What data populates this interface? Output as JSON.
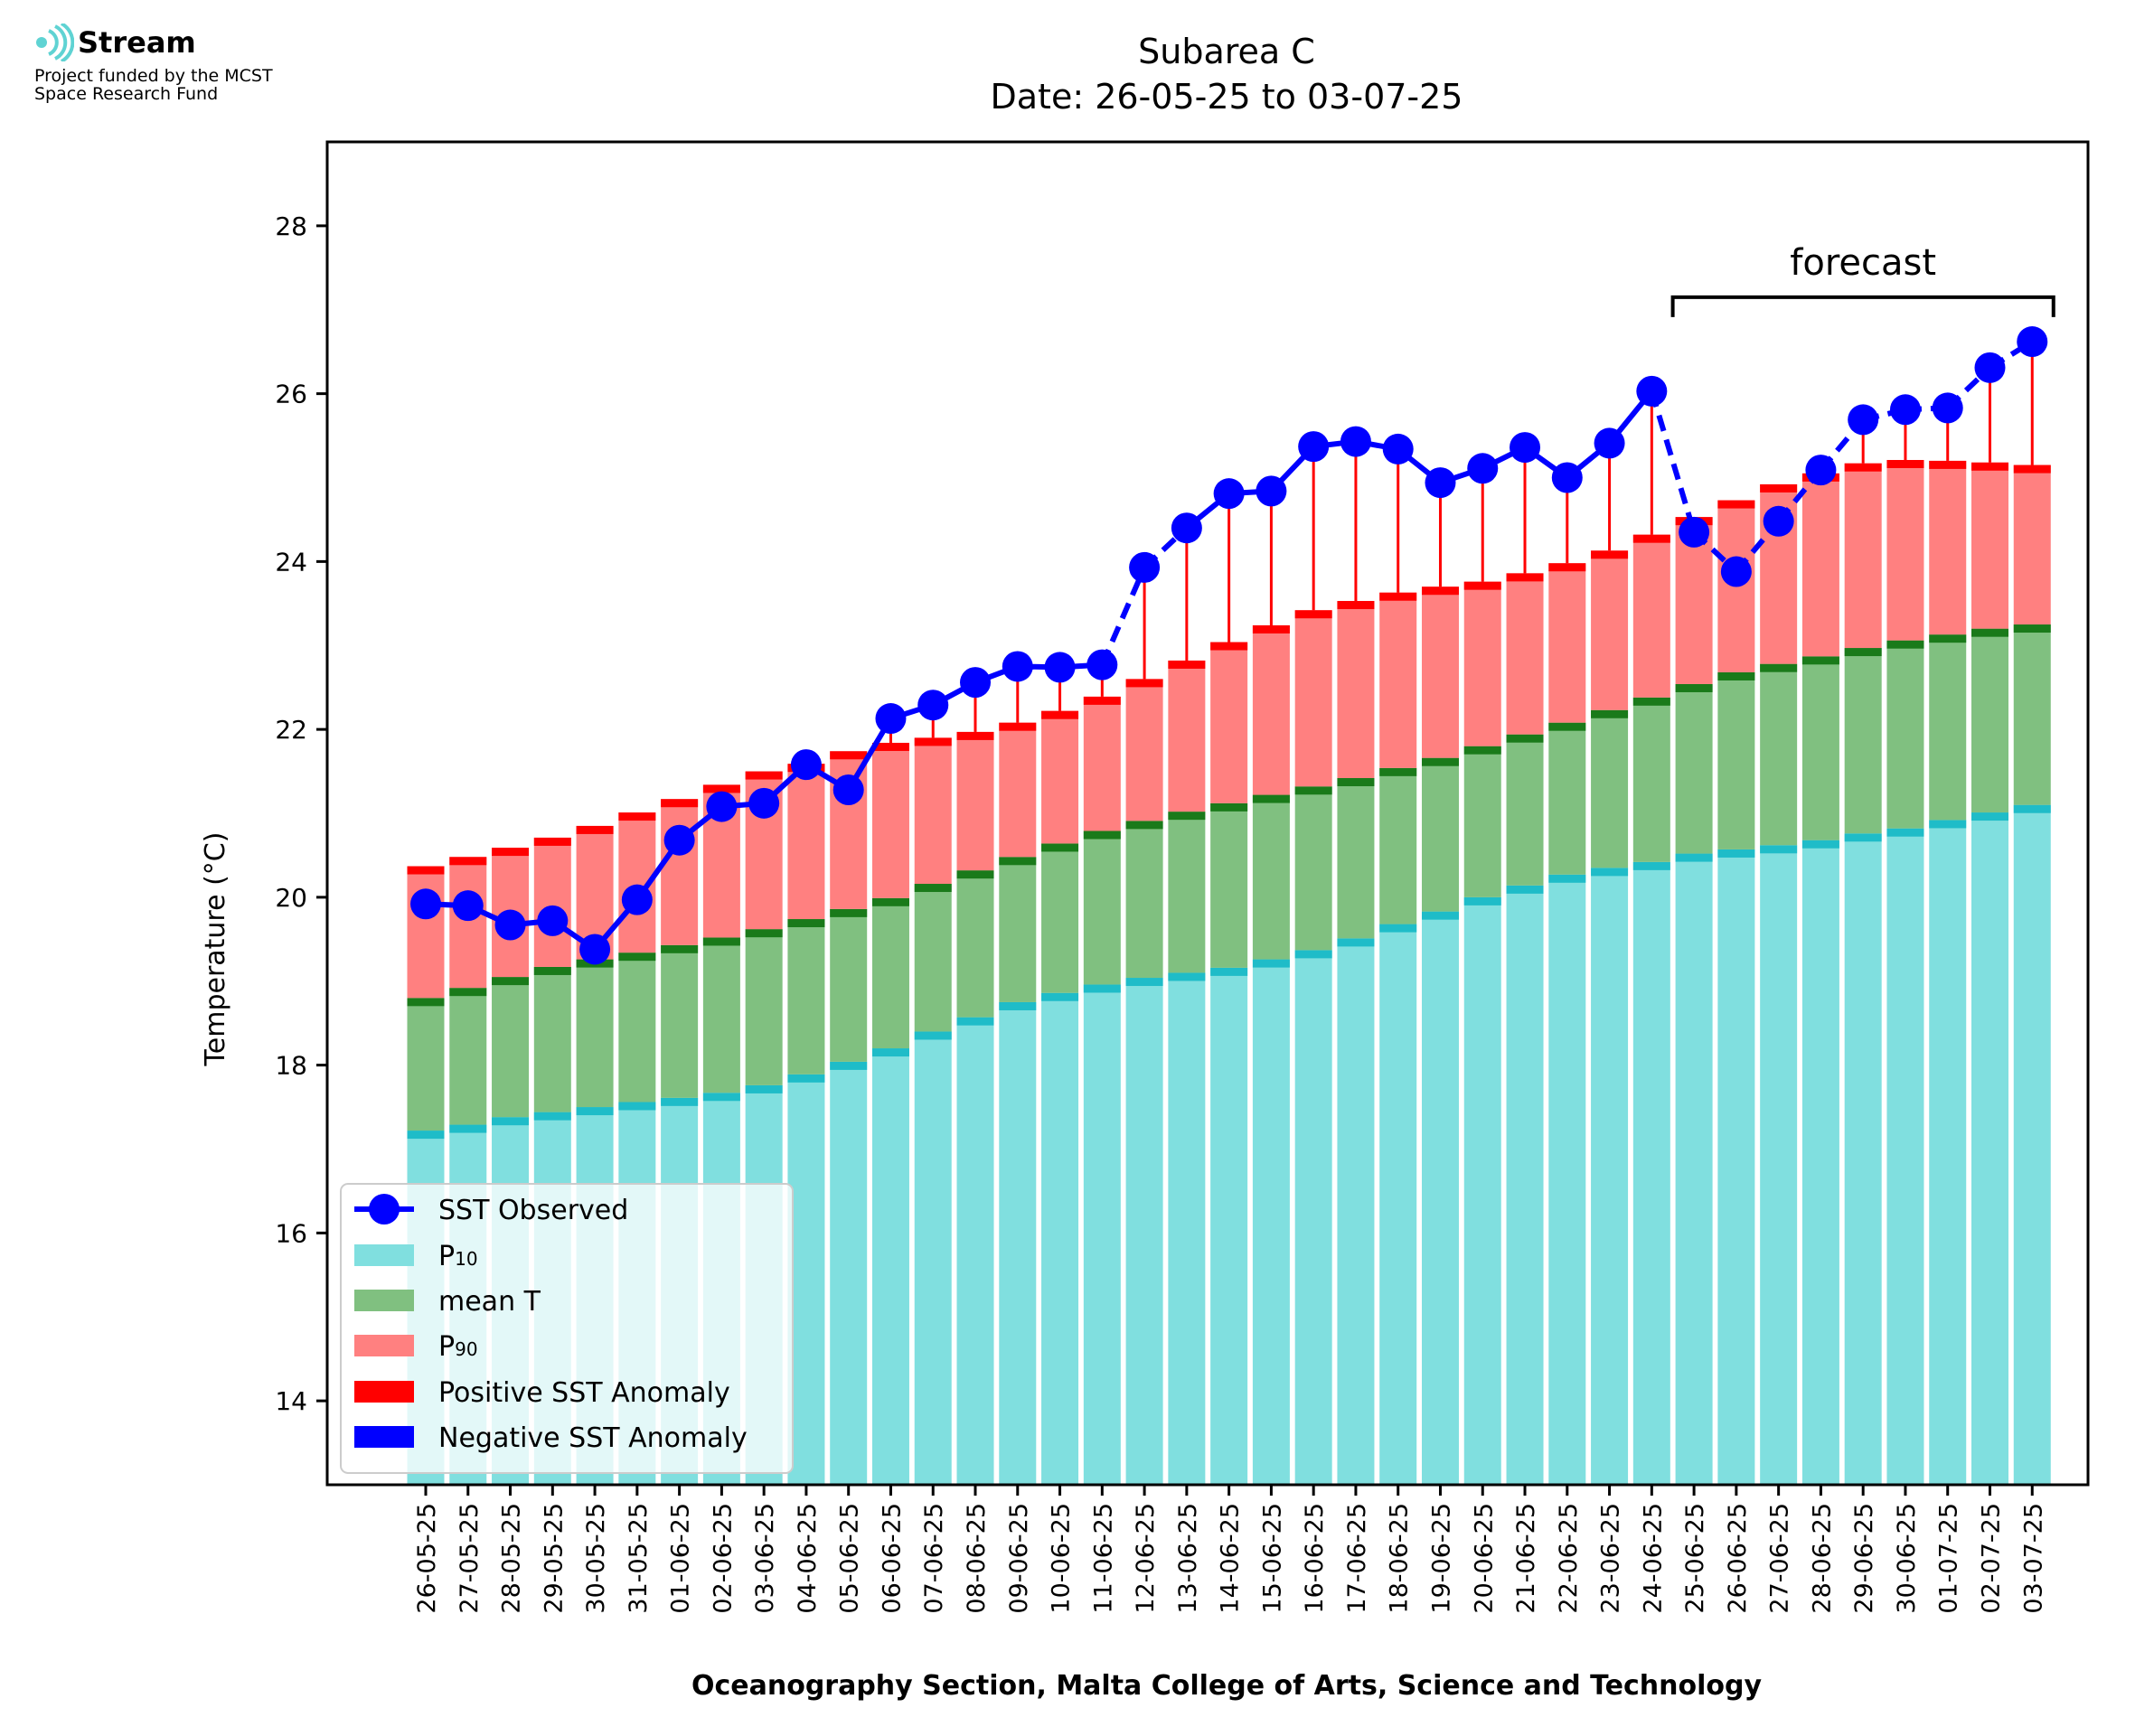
{
  "logo": {
    "name": "Stream",
    "line1": "Project funded by the MCST",
    "line2": "Space Research Fund",
    "icon": "stream-waves-icon",
    "color": "#5fd3d3"
  },
  "chart_data": {
    "type": "bar",
    "title": "Subarea C",
    "subtitle": "Date: 26-05-25 to 03-07-25",
    "xlabel": "Oceanography Section, Malta College of Arts, Science and Technology",
    "ylabel": "Temperature (°C)",
    "ylim": [
      13,
      29
    ],
    "yticks": [
      14,
      16,
      18,
      20,
      22,
      24,
      26,
      28
    ],
    "grid": false,
    "legend_position": "lower-left",
    "colors": {
      "p10": "#80dfdf",
      "p10_edge": "#1fbcc8",
      "mean": "#80c080",
      "mean_edge": "#1a7a1a",
      "p90": "#ff8080",
      "p90_edge": "#ff0000",
      "pos": "#ff0000",
      "neg": "#0000ff",
      "obs": "#0000ff"
    },
    "categories": [
      "26-05-25",
      "27-05-25",
      "28-05-25",
      "29-05-25",
      "30-05-25",
      "31-05-25",
      "01-06-25",
      "02-06-25",
      "03-06-25",
      "04-06-25",
      "05-06-25",
      "06-06-25",
      "07-06-25",
      "08-06-25",
      "09-06-25",
      "10-06-25",
      "11-06-25",
      "12-06-25",
      "13-06-25",
      "14-06-25",
      "15-06-25",
      "16-06-25",
      "17-06-25",
      "18-06-25",
      "19-06-25",
      "20-06-25",
      "21-06-25",
      "22-06-25",
      "23-06-25",
      "24-06-25",
      "25-06-25",
      "26-06-25",
      "27-06-25",
      "28-06-25",
      "29-06-25",
      "30-06-25",
      "01-07-25",
      "02-07-25",
      "03-07-25"
    ],
    "series": [
      {
        "name": "SST Observed",
        "values": [
          19.92,
          19.9,
          19.67,
          19.72,
          19.38,
          19.97,
          20.68,
          21.08,
          21.12,
          21.58,
          21.28,
          22.13,
          22.29,
          22.56,
          22.75,
          22.74,
          22.77,
          23.93,
          24.4,
          24.81,
          24.84,
          25.37,
          25.43,
          25.34,
          24.94,
          25.11,
          25.36,
          25.0,
          25.41,
          26.03,
          24.35,
          23.88,
          24.48,
          25.09,
          25.69,
          25.81,
          25.83,
          26.31,
          26.62
        ]
      },
      {
        "name": "P10",
        "label_main": "P",
        "label_sub": "10",
        "values": [
          17.22,
          17.29,
          17.38,
          17.44,
          17.5,
          17.56,
          17.61,
          17.67,
          17.76,
          17.89,
          18.04,
          18.2,
          18.4,
          18.57,
          18.75,
          18.86,
          18.96,
          19.04,
          19.1,
          19.16,
          19.26,
          19.37,
          19.51,
          19.68,
          19.83,
          20.0,
          20.14,
          20.27,
          20.35,
          20.42,
          20.52,
          20.57,
          20.62,
          20.68,
          20.76,
          20.82,
          20.92,
          21.01,
          21.1
        ]
      },
      {
        "name": "mean T",
        "values": [
          18.8,
          18.92,
          19.05,
          19.17,
          19.26,
          19.34,
          19.43,
          19.52,
          19.62,
          19.74,
          19.86,
          19.99,
          20.16,
          20.32,
          20.48,
          20.64,
          20.79,
          20.91,
          21.02,
          21.12,
          21.22,
          21.32,
          21.42,
          21.54,
          21.66,
          21.8,
          21.94,
          22.08,
          22.23,
          22.38,
          22.54,
          22.68,
          22.78,
          22.87,
          22.97,
          23.06,
          23.13,
          23.2,
          23.25
        ]
      },
      {
        "name": "P90",
        "label_main": "P",
        "label_sub": "90",
        "values": [
          20.37,
          20.48,
          20.59,
          20.71,
          20.85,
          21.01,
          21.17,
          21.34,
          21.5,
          21.59,
          21.74,
          21.84,
          21.9,
          21.97,
          22.08,
          22.22,
          22.39,
          22.6,
          22.82,
          23.04,
          23.24,
          23.42,
          23.53,
          23.63,
          23.7,
          23.76,
          23.86,
          23.98,
          24.13,
          24.32,
          24.53,
          24.73,
          24.92,
          25.05,
          25.17,
          25.21,
          25.2,
          25.18,
          25.15
        ]
      }
    ],
    "legend": [
      {
        "key": "obs",
        "label": "SST Observed"
      },
      {
        "key": "p10",
        "label_main": "P",
        "label_sub": "10"
      },
      {
        "key": "mean",
        "label": "mean T"
      },
      {
        "key": "p90",
        "label_main": "P",
        "label_sub": "90"
      },
      {
        "key": "pos",
        "label": "Positive SST Anomaly"
      },
      {
        "key": "neg",
        "label": "Negative SST Anomaly"
      }
    ],
    "forecast": {
      "label": "forecast",
      "from": "25-06-25",
      "to": "03-07-25",
      "level": 27.15
    },
    "dashed_segments_after": [
      "11-06-25",
      "12-06-25",
      "24-06-25",
      "25-06-25",
      "26-06-25",
      "27-06-25",
      "28-06-25",
      "29-06-25",
      "30-06-25",
      "01-07-25",
      "02-07-25"
    ]
  }
}
